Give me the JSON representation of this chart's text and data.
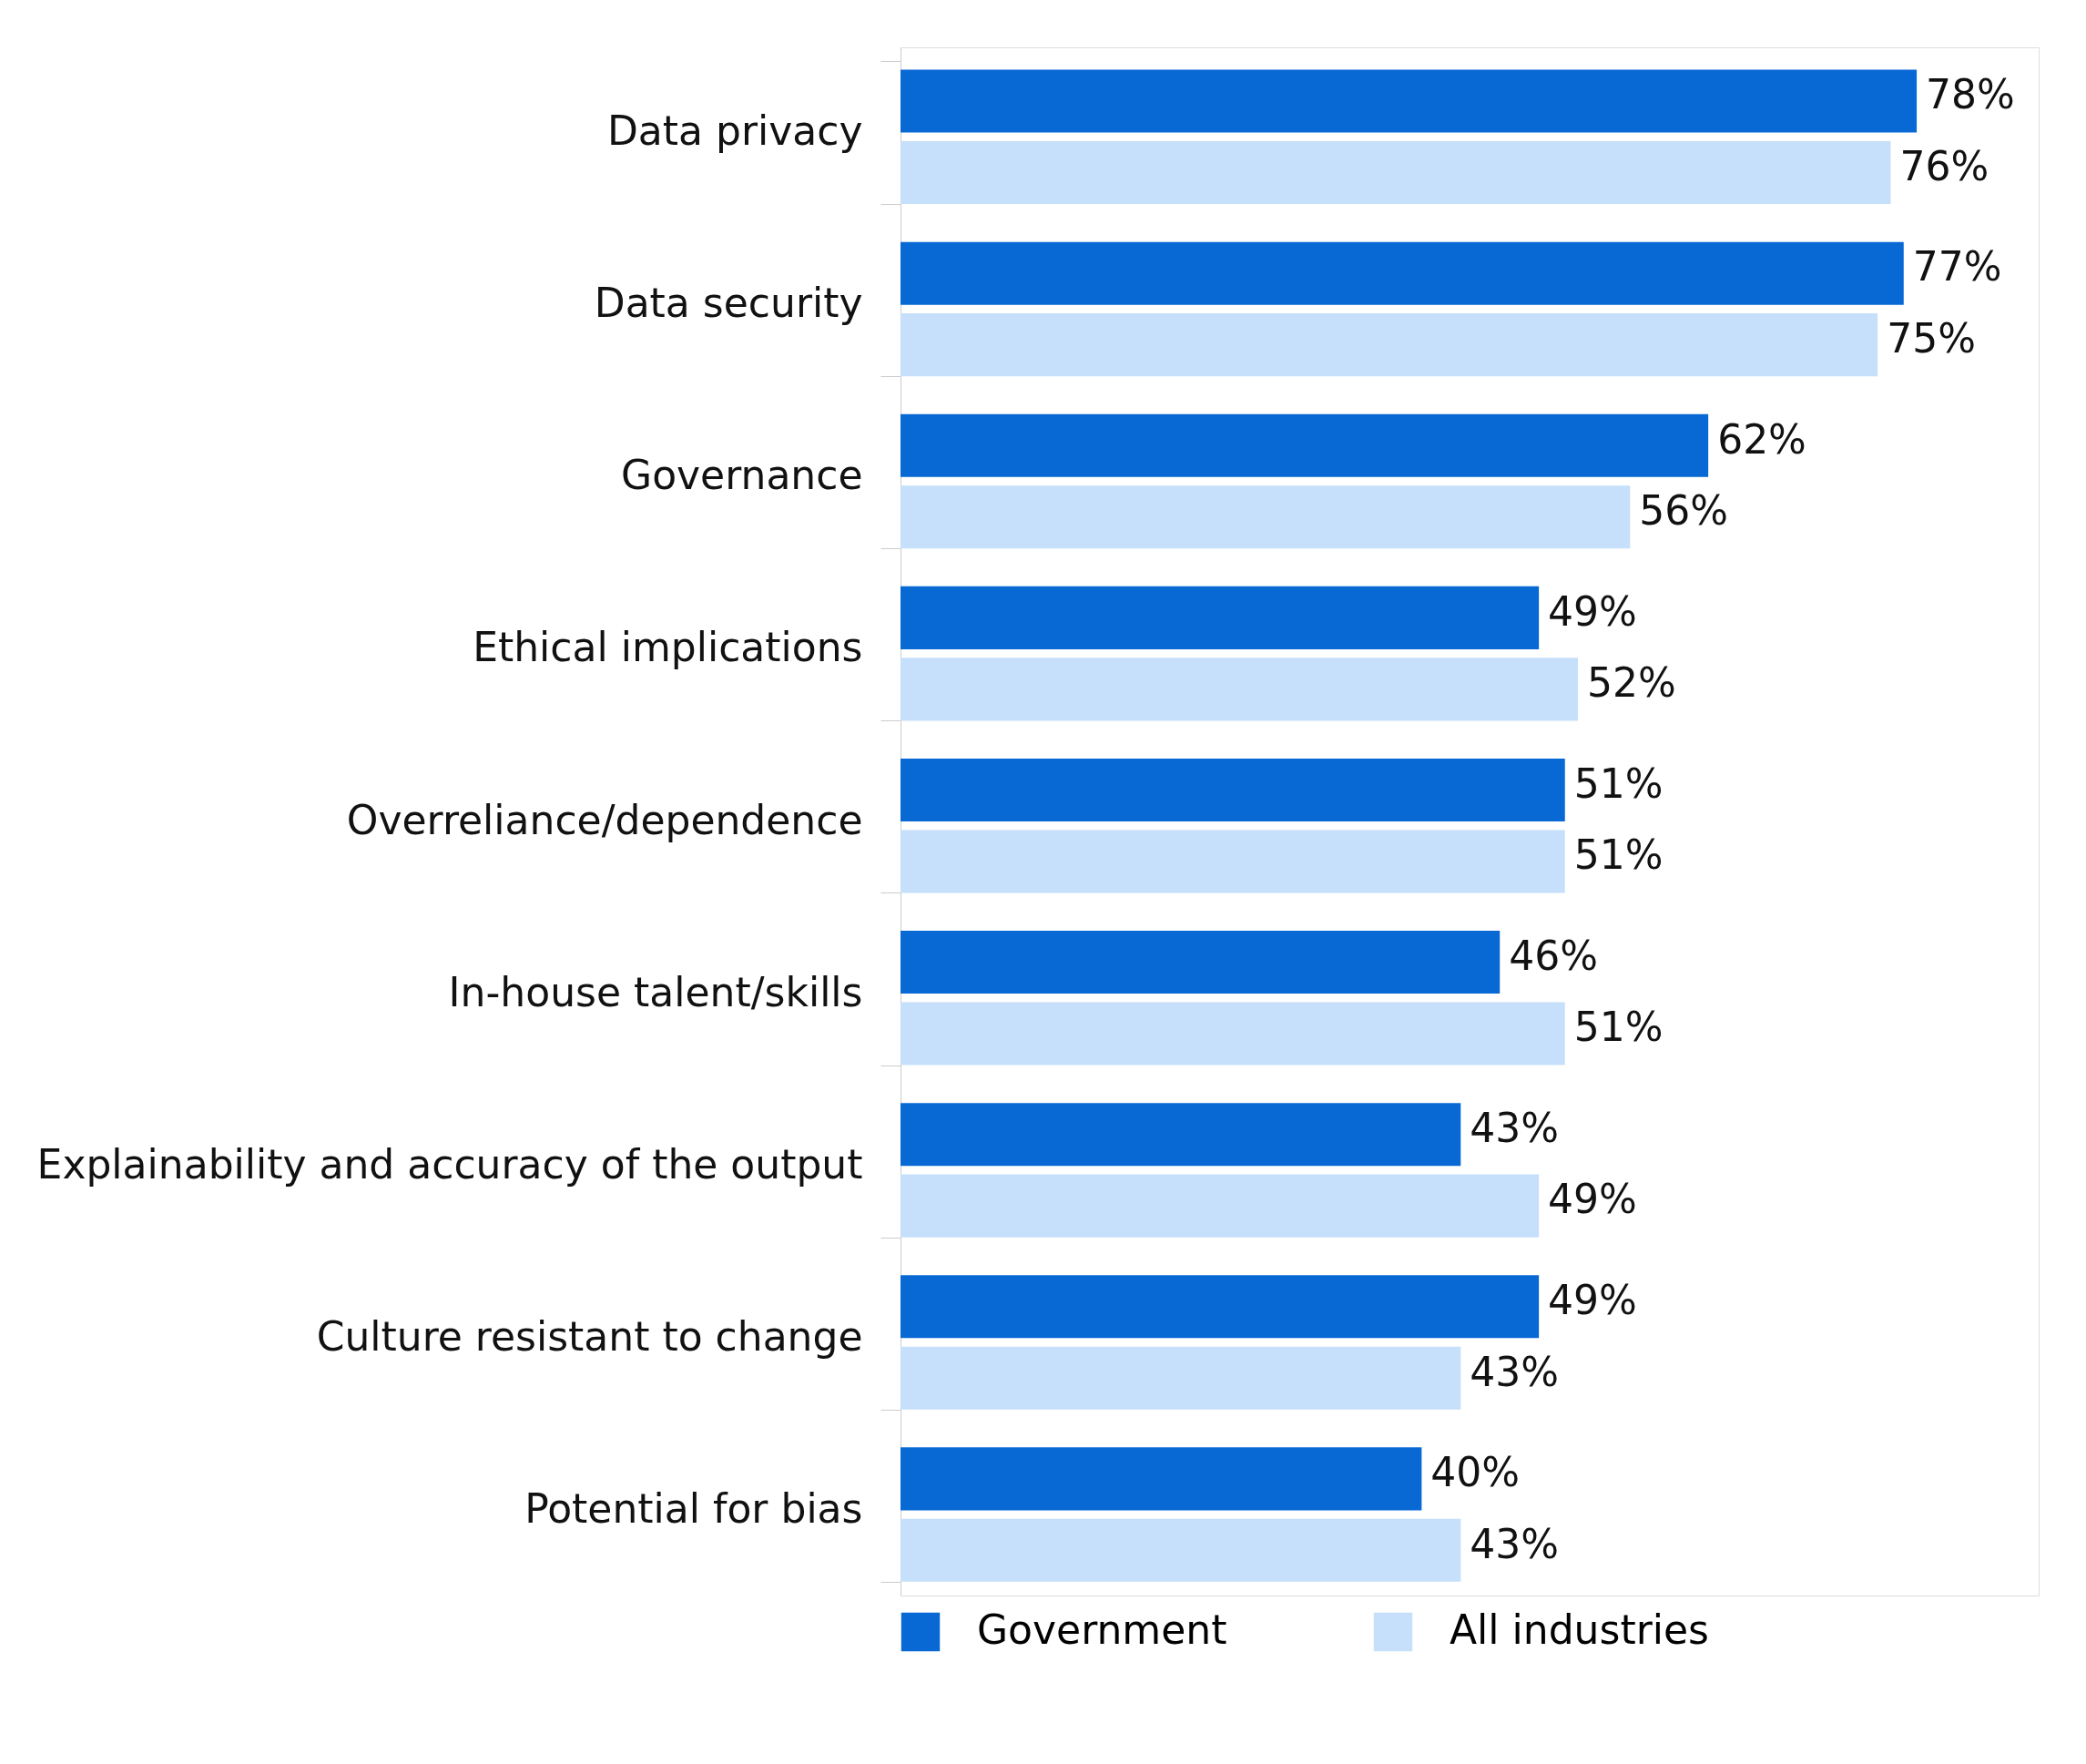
{
  "chart_data": {
    "type": "bar",
    "orientation": "horizontal",
    "categories": [
      "Data privacy",
      "Data security",
      "Governance",
      "Ethical implications",
      "Overreliance/dependence",
      "In-house talent/skills",
      "Explainability and accuracy of the output",
      "Culture resistant to change",
      "Potential for bias"
    ],
    "series": [
      {
        "name": "Government",
        "color": "#0868d4",
        "values": [
          78,
          77,
          62,
          49,
          51,
          46,
          43,
          49,
          40
        ],
        "value_labels": [
          "78%",
          "77%",
          "62%",
          "49%",
          "51%",
          "46%",
          "43%",
          "49%",
          "40%"
        ]
      },
      {
        "name": "All industries",
        "color": "#c6dffa",
        "values": [
          76,
          75,
          56,
          52,
          51,
          51,
          49,
          43,
          43
        ],
        "value_labels": [
          "76%",
          "75%",
          "56%",
          "52%",
          "51%",
          "51%",
          "49%",
          "43%",
          "43%"
        ]
      }
    ],
    "legend": "bottom",
    "grid": false
  }
}
